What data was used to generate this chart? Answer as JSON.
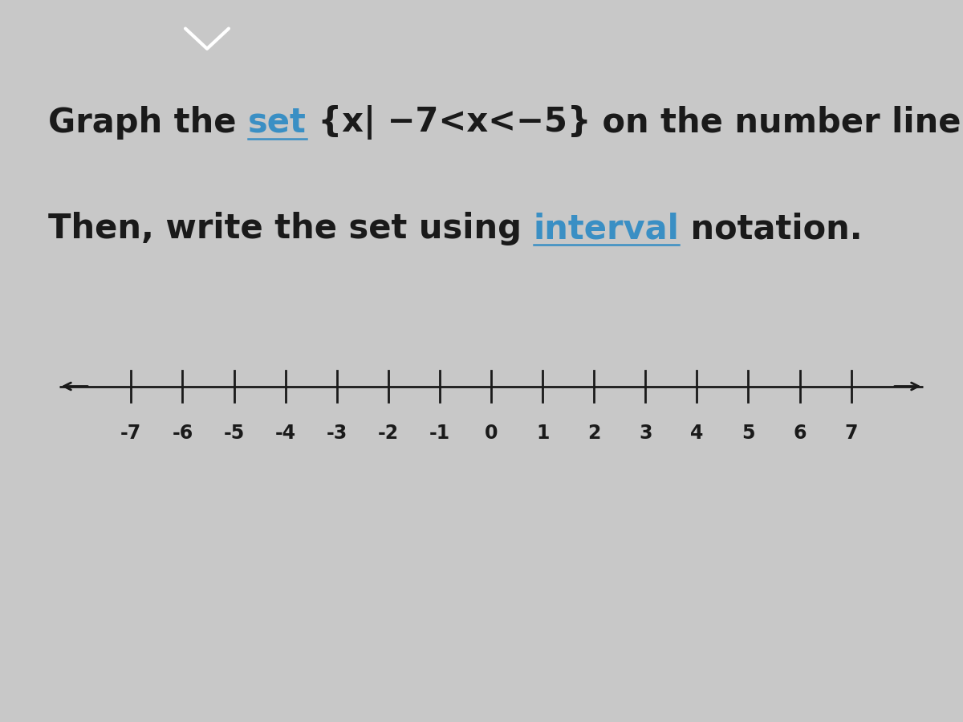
{
  "bg_color": "#c8c8c8",
  "box_bg_color": "#e8e8e8",
  "box_edge_color": "#2a2a2a",
  "title_fontsize": 30,
  "tick_min": -7,
  "tick_max": 7,
  "number_line_color": "#1a1a1a",
  "tick_color": "#1a1a1a",
  "text_color": "#1a1a1a",
  "blue_color": "#3a8fc4",
  "chevron_bg": "#4a85b8",
  "seg1_line1": [
    "Graph the ",
    "set",
    " {x| −7<x<−5}",
    " on the number line."
  ],
  "seg1_colors": [
    "#1a1a1a",
    "#3a8fc4",
    "#1a1a1a",
    "#1a1a1a"
  ],
  "seg1_underline": [
    false,
    true,
    false,
    false
  ],
  "seg2_line2": [
    "Then, write the set using ",
    "interval",
    " notation."
  ],
  "seg2_colors": [
    "#1a1a1a",
    "#3a8fc4",
    "#1a1a1a"
  ],
  "seg2_underline": [
    false,
    true,
    false
  ],
  "tick_labels": [
    "-7",
    "-6",
    "-5",
    "-4",
    "-3",
    "-2",
    "-1",
    "0",
    "1",
    "2",
    "3",
    "4",
    "5",
    "6",
    "7"
  ]
}
